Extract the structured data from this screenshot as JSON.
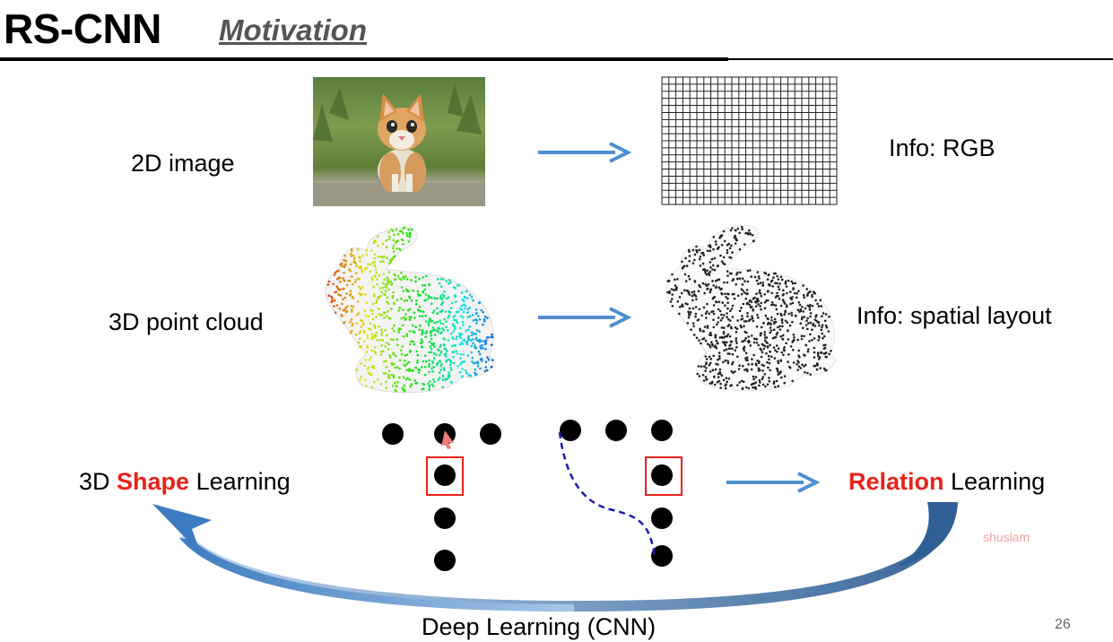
{
  "slide": {
    "title": "RS-CNN",
    "subtitle": "Motivation",
    "page_number": "26",
    "watermark": "shuslam"
  },
  "rows": {
    "image_label": "2D image",
    "image_info": "Info: RGB",
    "cloud_label": "3D point cloud",
    "cloud_info": "Info: spatial layout"
  },
  "learning": {
    "shape_prefix": "3D ",
    "shape_word": "Shape",
    "shape_suffix": " Learning",
    "relation_word": "Relation",
    "relation_suffix": " Learning",
    "deep_label": "Deep Learning (CNN)"
  },
  "colors": {
    "accent_red": "#e8231a",
    "arrow_blue": "#4f8fd0",
    "dashed_blue": "#1d1db8"
  },
  "icons": {
    "kitten": "kitten-photo",
    "grid": "pixel-grid",
    "bunny_colored": "colored-bunny-point-cloud",
    "bunny_gray": "gray-bunny-point-cloud"
  }
}
